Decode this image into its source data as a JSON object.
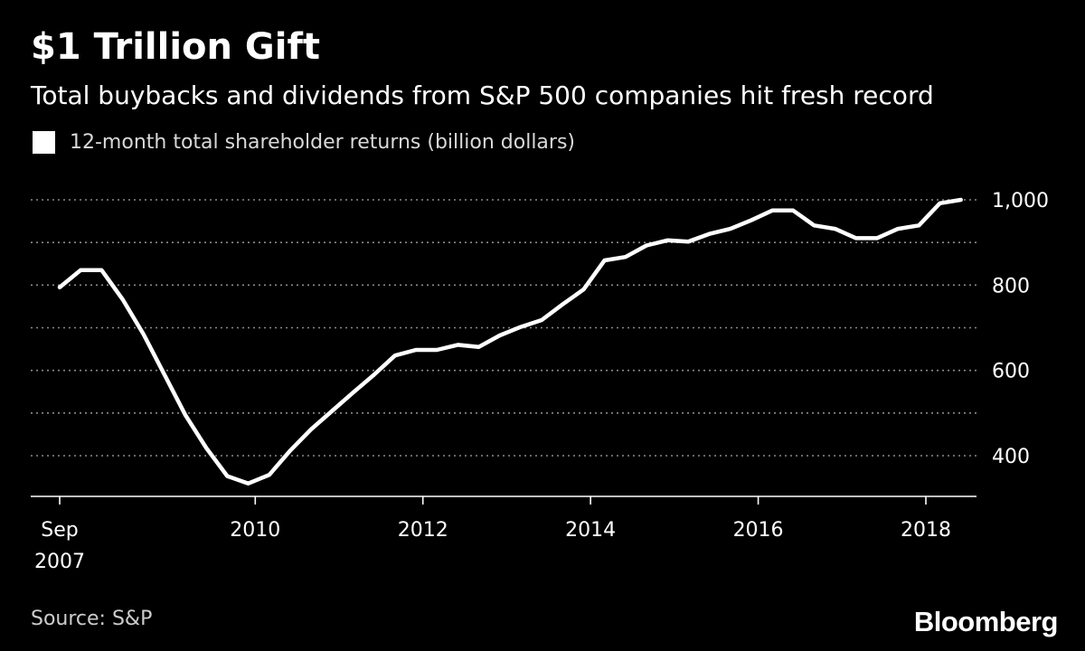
{
  "header": {
    "title": "$1 Trillion Gift",
    "subtitle": "Total buybacks and dividends from S&P 500 companies hit fresh record"
  },
  "legend": {
    "label": "12-month total shareholder returns (billion dollars)"
  },
  "footer": {
    "source": "Source: S&P",
    "brand": "Bloomberg"
  },
  "colors": {
    "background": "#000000",
    "line": "#ffffff",
    "text": "#ffffff",
    "muted_text": "#cccccc",
    "grid": "#8a8a8a"
  },
  "chart_data": {
    "type": "line",
    "title": "$1 Trillion Gift",
    "subtitle": "Total buybacks and dividends from S&P 500 companies hit fresh record",
    "xlabel": "",
    "ylabel": "billion dollars",
    "ylim": [
      300,
      1000
    ],
    "xlim": [
      2007.583,
      2018.75
    ],
    "y_ticks": [
      {
        "value": 400,
        "label": "400"
      },
      {
        "value": 600,
        "label": "600"
      },
      {
        "value": 800,
        "label": "800"
      },
      {
        "value": 1000,
        "label": "1,000"
      }
    ],
    "y_minor_gridlines": [
      500,
      700,
      900
    ],
    "x_ticks": [
      {
        "value": 2007.667,
        "label": "Sep",
        "label2": "2007"
      },
      {
        "value": 2010,
        "label": "2010"
      },
      {
        "value": 2012,
        "label": "2012"
      },
      {
        "value": 2014,
        "label": "2014"
      },
      {
        "value": 2016,
        "label": "2016"
      },
      {
        "value": 2018,
        "label": "2018"
      }
    ],
    "grid": true,
    "series": [
      {
        "name": "12-month total shareholder returns (billion dollars)",
        "x": [
          2007.667,
          2007.917,
          2008.167,
          2008.417,
          2008.667,
          2008.917,
          2009.167,
          2009.417,
          2009.667,
          2009.917,
          2010.167,
          2010.417,
          2010.667,
          2010.917,
          2011.167,
          2011.417,
          2011.667,
          2011.917,
          2012.167,
          2012.417,
          2012.667,
          2012.917,
          2013.167,
          2013.417,
          2013.667,
          2013.917,
          2014.167,
          2014.417,
          2014.667,
          2014.917,
          2015.167,
          2015.417,
          2015.667,
          2015.917,
          2016.167,
          2016.417,
          2016.667,
          2016.917,
          2017.167,
          2017.417,
          2017.667,
          2017.917,
          2018.167,
          2018.417
        ],
        "values": [
          795,
          835,
          835,
          767,
          685,
          590,
          495,
          418,
          352,
          335,
          355,
          412,
          462,
          505,
          548,
          590,
          635,
          648,
          648,
          660,
          655,
          682,
          702,
          718,
          755,
          790,
          858,
          866,
          893,
          905,
          902,
          920,
          932,
          952,
          975,
          975,
          940,
          932,
          910,
          910,
          932,
          940,
          992,
          1000
        ]
      }
    ]
  }
}
